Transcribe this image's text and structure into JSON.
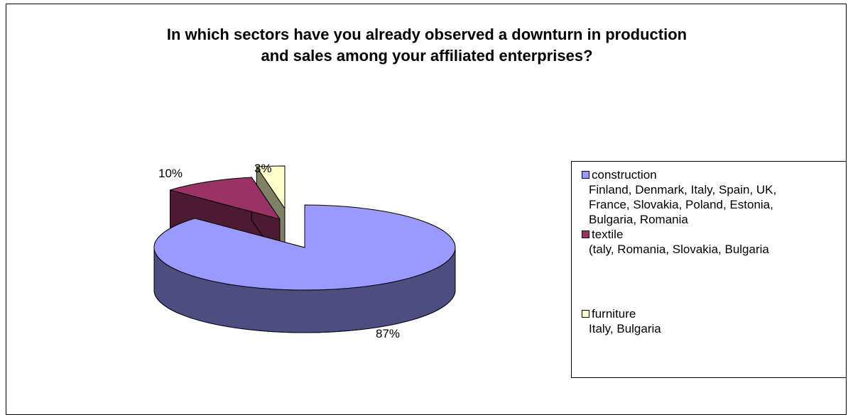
{
  "chart_data": {
    "type": "pie",
    "title": [
      "In which sectors have you already observed a downturn in production",
      "and sales among your affiliated enterprises?"
    ],
    "categories": [
      "construction",
      "textile",
      "furniture"
    ],
    "values": [
      87,
      10,
      3
    ],
    "labels": [
      "87%",
      "10%",
      "3%"
    ],
    "legend": {
      "position": "right",
      "entries": [
        {
          "name": "construction",
          "detail": [
            "Finland, Denmark, Italy, Spain, UK,",
            "France, Slovakia, Poland, Estonia,",
            "Bulgaria, Romania"
          ]
        },
        {
          "name": "textile",
          "detail": [
            "(taly, Romania, Slovakia, Bulgaria"
          ]
        },
        {
          "name": "furniture",
          "detail": [
            "Italy, Bulgaria"
          ]
        }
      ]
    },
    "colors": {
      "top": [
        "#9999ff",
        "#993366",
        "#ffffcc"
      ],
      "side": [
        "#4d4d80",
        "#4d1a33",
        "#808066"
      ]
    },
    "exploded": [
      "textile",
      "furniture"
    ]
  }
}
